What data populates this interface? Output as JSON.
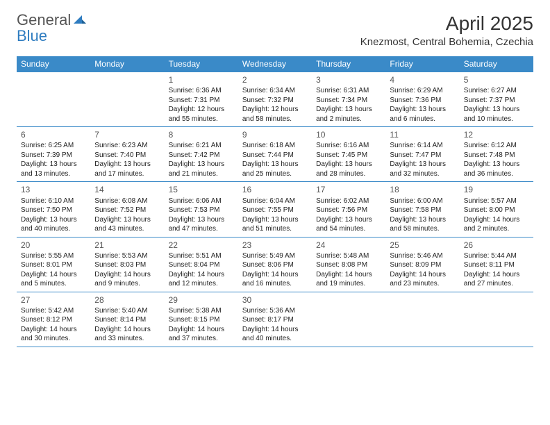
{
  "brand": {
    "part1": "General",
    "part2": "Blue"
  },
  "title": "April 2025",
  "location": "Knezmost, Central Bohemia, Czechia",
  "colors": {
    "header_bg": "#3a8ac8",
    "header_text": "#ffffff",
    "border": "#3a8ac8",
    "text": "#222222",
    "brand_gray": "#555555",
    "brand_blue": "#2e7cc0",
    "page_bg": "#ffffff"
  },
  "dayHeaders": [
    "Sunday",
    "Monday",
    "Tuesday",
    "Wednesday",
    "Thursday",
    "Friday",
    "Saturday"
  ],
  "weeks": [
    [
      null,
      null,
      {
        "n": "1",
        "sr": "Sunrise: 6:36 AM",
        "ss": "Sunset: 7:31 PM",
        "dl": "Daylight: 12 hours and 55 minutes."
      },
      {
        "n": "2",
        "sr": "Sunrise: 6:34 AM",
        "ss": "Sunset: 7:32 PM",
        "dl": "Daylight: 12 hours and 58 minutes."
      },
      {
        "n": "3",
        "sr": "Sunrise: 6:31 AM",
        "ss": "Sunset: 7:34 PM",
        "dl": "Daylight: 13 hours and 2 minutes."
      },
      {
        "n": "4",
        "sr": "Sunrise: 6:29 AM",
        "ss": "Sunset: 7:36 PM",
        "dl": "Daylight: 13 hours and 6 minutes."
      },
      {
        "n": "5",
        "sr": "Sunrise: 6:27 AM",
        "ss": "Sunset: 7:37 PM",
        "dl": "Daylight: 13 hours and 10 minutes."
      }
    ],
    [
      {
        "n": "6",
        "sr": "Sunrise: 6:25 AM",
        "ss": "Sunset: 7:39 PM",
        "dl": "Daylight: 13 hours and 13 minutes."
      },
      {
        "n": "7",
        "sr": "Sunrise: 6:23 AM",
        "ss": "Sunset: 7:40 PM",
        "dl": "Daylight: 13 hours and 17 minutes."
      },
      {
        "n": "8",
        "sr": "Sunrise: 6:21 AM",
        "ss": "Sunset: 7:42 PM",
        "dl": "Daylight: 13 hours and 21 minutes."
      },
      {
        "n": "9",
        "sr": "Sunrise: 6:18 AM",
        "ss": "Sunset: 7:44 PM",
        "dl": "Daylight: 13 hours and 25 minutes."
      },
      {
        "n": "10",
        "sr": "Sunrise: 6:16 AM",
        "ss": "Sunset: 7:45 PM",
        "dl": "Daylight: 13 hours and 28 minutes."
      },
      {
        "n": "11",
        "sr": "Sunrise: 6:14 AM",
        "ss": "Sunset: 7:47 PM",
        "dl": "Daylight: 13 hours and 32 minutes."
      },
      {
        "n": "12",
        "sr": "Sunrise: 6:12 AM",
        "ss": "Sunset: 7:48 PM",
        "dl": "Daylight: 13 hours and 36 minutes."
      }
    ],
    [
      {
        "n": "13",
        "sr": "Sunrise: 6:10 AM",
        "ss": "Sunset: 7:50 PM",
        "dl": "Daylight: 13 hours and 40 minutes."
      },
      {
        "n": "14",
        "sr": "Sunrise: 6:08 AM",
        "ss": "Sunset: 7:52 PM",
        "dl": "Daylight: 13 hours and 43 minutes."
      },
      {
        "n": "15",
        "sr": "Sunrise: 6:06 AM",
        "ss": "Sunset: 7:53 PM",
        "dl": "Daylight: 13 hours and 47 minutes."
      },
      {
        "n": "16",
        "sr": "Sunrise: 6:04 AM",
        "ss": "Sunset: 7:55 PM",
        "dl": "Daylight: 13 hours and 51 minutes."
      },
      {
        "n": "17",
        "sr": "Sunrise: 6:02 AM",
        "ss": "Sunset: 7:56 PM",
        "dl": "Daylight: 13 hours and 54 minutes."
      },
      {
        "n": "18",
        "sr": "Sunrise: 6:00 AM",
        "ss": "Sunset: 7:58 PM",
        "dl": "Daylight: 13 hours and 58 minutes."
      },
      {
        "n": "19",
        "sr": "Sunrise: 5:57 AM",
        "ss": "Sunset: 8:00 PM",
        "dl": "Daylight: 14 hours and 2 minutes."
      }
    ],
    [
      {
        "n": "20",
        "sr": "Sunrise: 5:55 AM",
        "ss": "Sunset: 8:01 PM",
        "dl": "Daylight: 14 hours and 5 minutes."
      },
      {
        "n": "21",
        "sr": "Sunrise: 5:53 AM",
        "ss": "Sunset: 8:03 PM",
        "dl": "Daylight: 14 hours and 9 minutes."
      },
      {
        "n": "22",
        "sr": "Sunrise: 5:51 AM",
        "ss": "Sunset: 8:04 PM",
        "dl": "Daylight: 14 hours and 12 minutes."
      },
      {
        "n": "23",
        "sr": "Sunrise: 5:49 AM",
        "ss": "Sunset: 8:06 PM",
        "dl": "Daylight: 14 hours and 16 minutes."
      },
      {
        "n": "24",
        "sr": "Sunrise: 5:48 AM",
        "ss": "Sunset: 8:08 PM",
        "dl": "Daylight: 14 hours and 19 minutes."
      },
      {
        "n": "25",
        "sr": "Sunrise: 5:46 AM",
        "ss": "Sunset: 8:09 PM",
        "dl": "Daylight: 14 hours and 23 minutes."
      },
      {
        "n": "26",
        "sr": "Sunrise: 5:44 AM",
        "ss": "Sunset: 8:11 PM",
        "dl": "Daylight: 14 hours and 27 minutes."
      }
    ],
    [
      {
        "n": "27",
        "sr": "Sunrise: 5:42 AM",
        "ss": "Sunset: 8:12 PM",
        "dl": "Daylight: 14 hours and 30 minutes."
      },
      {
        "n": "28",
        "sr": "Sunrise: 5:40 AM",
        "ss": "Sunset: 8:14 PM",
        "dl": "Daylight: 14 hours and 33 minutes."
      },
      {
        "n": "29",
        "sr": "Sunrise: 5:38 AM",
        "ss": "Sunset: 8:15 PM",
        "dl": "Daylight: 14 hours and 37 minutes."
      },
      {
        "n": "30",
        "sr": "Sunrise: 5:36 AM",
        "ss": "Sunset: 8:17 PM",
        "dl": "Daylight: 14 hours and 40 minutes."
      },
      null,
      null,
      null
    ]
  ]
}
